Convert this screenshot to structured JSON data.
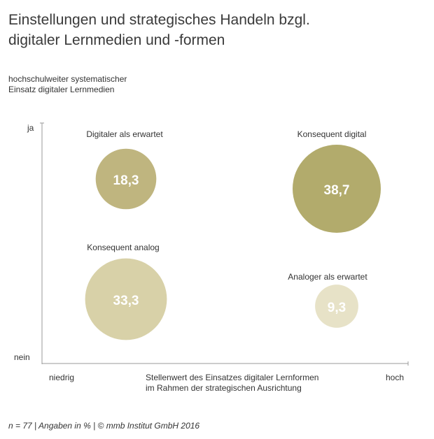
{
  "title_line1": "Einstellungen und strategisches Handeln bzgl.",
  "title_line2": "digitaler Lernmedien und -formen",
  "footer": "n = 77 | Angaben in % | © mmb Institut GmbH 2016",
  "chart_data": {
    "type": "bubble-quadrant",
    "title": "Einstellungen und strategisches Handeln bzgl. digitaler Lernmedien und -formen",
    "ylabel_lines": [
      "hochschulweiter systematischer",
      "Einsatz digitaler Lernmedien"
    ],
    "xlabel_lines": [
      "Stellenwert des Einsatzes digitaler Lernformen",
      "im Rahmen der strategischen Ausrichtung"
    ],
    "y_tick_high": "ja",
    "y_tick_low": "nein",
    "x_tick_low": "niedrig",
    "x_tick_high": "hoch",
    "unit": "%",
    "quadrants": [
      {
        "label": "Digitaler als erwartet",
        "x": "niedrig",
        "y": "ja",
        "value": 18.3,
        "display": "18,3",
        "color": "#bfb57f"
      },
      {
        "label": "Konsequent digital",
        "x": "hoch",
        "y": "ja",
        "value": 38.7,
        "display": "38,7",
        "color": "#b2ab6c"
      },
      {
        "label": "Konsequent analog",
        "x": "niedrig",
        "y": "nein",
        "value": 33.3,
        "display": "33,3",
        "color": "#d8d1a8"
      },
      {
        "label": "Analoger als erwartet",
        "x": "hoch",
        "y": "nein",
        "value": 9.3,
        "display": "9,3",
        "color": "#e7e2c7"
      }
    ]
  }
}
